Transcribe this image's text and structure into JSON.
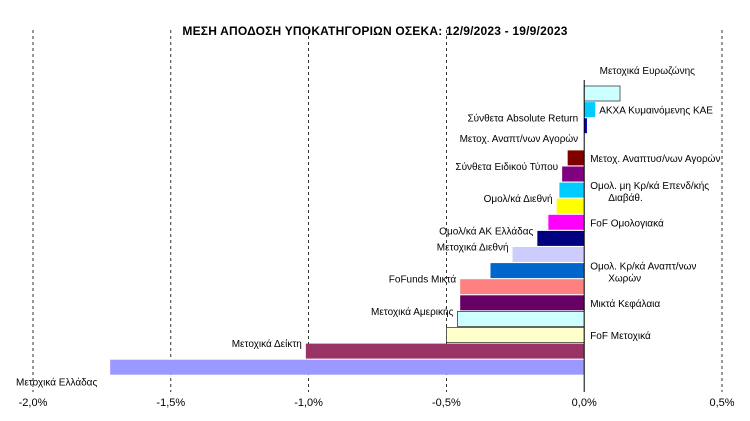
{
  "chart_data": {
    "type": "bar",
    "orientation": "horizontal",
    "title": "ΜΕΣΗ ΑΠΟΔΟΣΗ ΥΠΟΚΑΤΗΓΟΡΙΩΝ  ΟΣΕΚΑ:  12/9/2023  - 19/9/2023",
    "xlabel": "",
    "ylabel": "",
    "xlim": [
      -0.02,
      0.005
    ],
    "x_ticks": [
      {
        "value": -0.02,
        "label": "-2,0%"
      },
      {
        "value": -0.015,
        "label": "-1,5%"
      },
      {
        "value": -0.01,
        "label": "-1,0%"
      },
      {
        "value": -0.005,
        "label": "-0,5%"
      },
      {
        "value": 0.0,
        "label": "0,0%"
      },
      {
        "value": 0.005,
        "label": "0,5%"
      }
    ],
    "grid": "vertical dashed",
    "categories": [
      {
        "label": "Μετοχικά Ευρωζώνης",
        "value": 0.0013,
        "color": "#ccffff",
        "border": true
      },
      {
        "label": "ΑΚΧΑ Κυμαινόμενης ΚΑΕ",
        "value": 0.0004,
        "color": "#00ccff",
        "border": false
      },
      {
        "label": "Σύνθετα Absolute Return",
        "value": 0.0001,
        "color": "#0000cc",
        "border": false
      },
      {
        "label": "Μετοχ. Αναπτ/νων Αγορών",
        "value": 0.0,
        "color": "#ffffff",
        "border": false
      },
      {
        "label": "Μετοχ. Αναπτυσ/νων Αγορών",
        "value": -0.0006,
        "color": "#800000",
        "border": false
      },
      {
        "label": "Σύνθετα Ειδικού Τύπου",
        "value": -0.0008,
        "color": "#800080",
        "border": false
      },
      {
        "label": "Ομολ. μη Κρ/κά Επενδ/κής Διαβάθ.",
        "value": -0.0009,
        "color": "#00ccff",
        "border": false
      },
      {
        "label": "Ομολ/κά Διεθνή",
        "value": -0.001,
        "color": "#ffff00",
        "border": false
      },
      {
        "label": "FoF Ομολογιακά",
        "value": -0.0013,
        "color": "#ff00ff",
        "border": false
      },
      {
        "label": "Ομολ/κά ΑΚ Ελλάδας",
        "value": -0.0017,
        "color": "#000080",
        "border": false
      },
      {
        "label": "Μετοχικά Διεθνή",
        "value": -0.0026,
        "color": "#ccccff",
        "border": false
      },
      {
        "label": "Ομολ. Κρ/κά Αναπτ/νων Χωρών",
        "value": -0.0034,
        "color": "#0066cc",
        "border": false
      },
      {
        "label": "FoFunds Μικτά",
        "value": -0.0045,
        "color": "#ff8080",
        "border": false
      },
      {
        "label": "Μικτά Κεφάλαια",
        "value": -0.0045,
        "color": "#660066",
        "border": false
      },
      {
        "label": "Μετοχικά Αμερικής",
        "value": -0.0046,
        "color": "#ccffff",
        "border": true
      },
      {
        "label": "FoF Μετοχικά",
        "value": -0.005,
        "color": "#ffffcc",
        "border": true
      },
      {
        "label": "Μετοχικά Δείκτη",
        "value": -0.0101,
        "color": "#993366",
        "border": false
      },
      {
        "label": "Μετοχικά Ελλάδας",
        "value": -0.0172,
        "color": "#9999ff",
        "border": false
      }
    ]
  }
}
